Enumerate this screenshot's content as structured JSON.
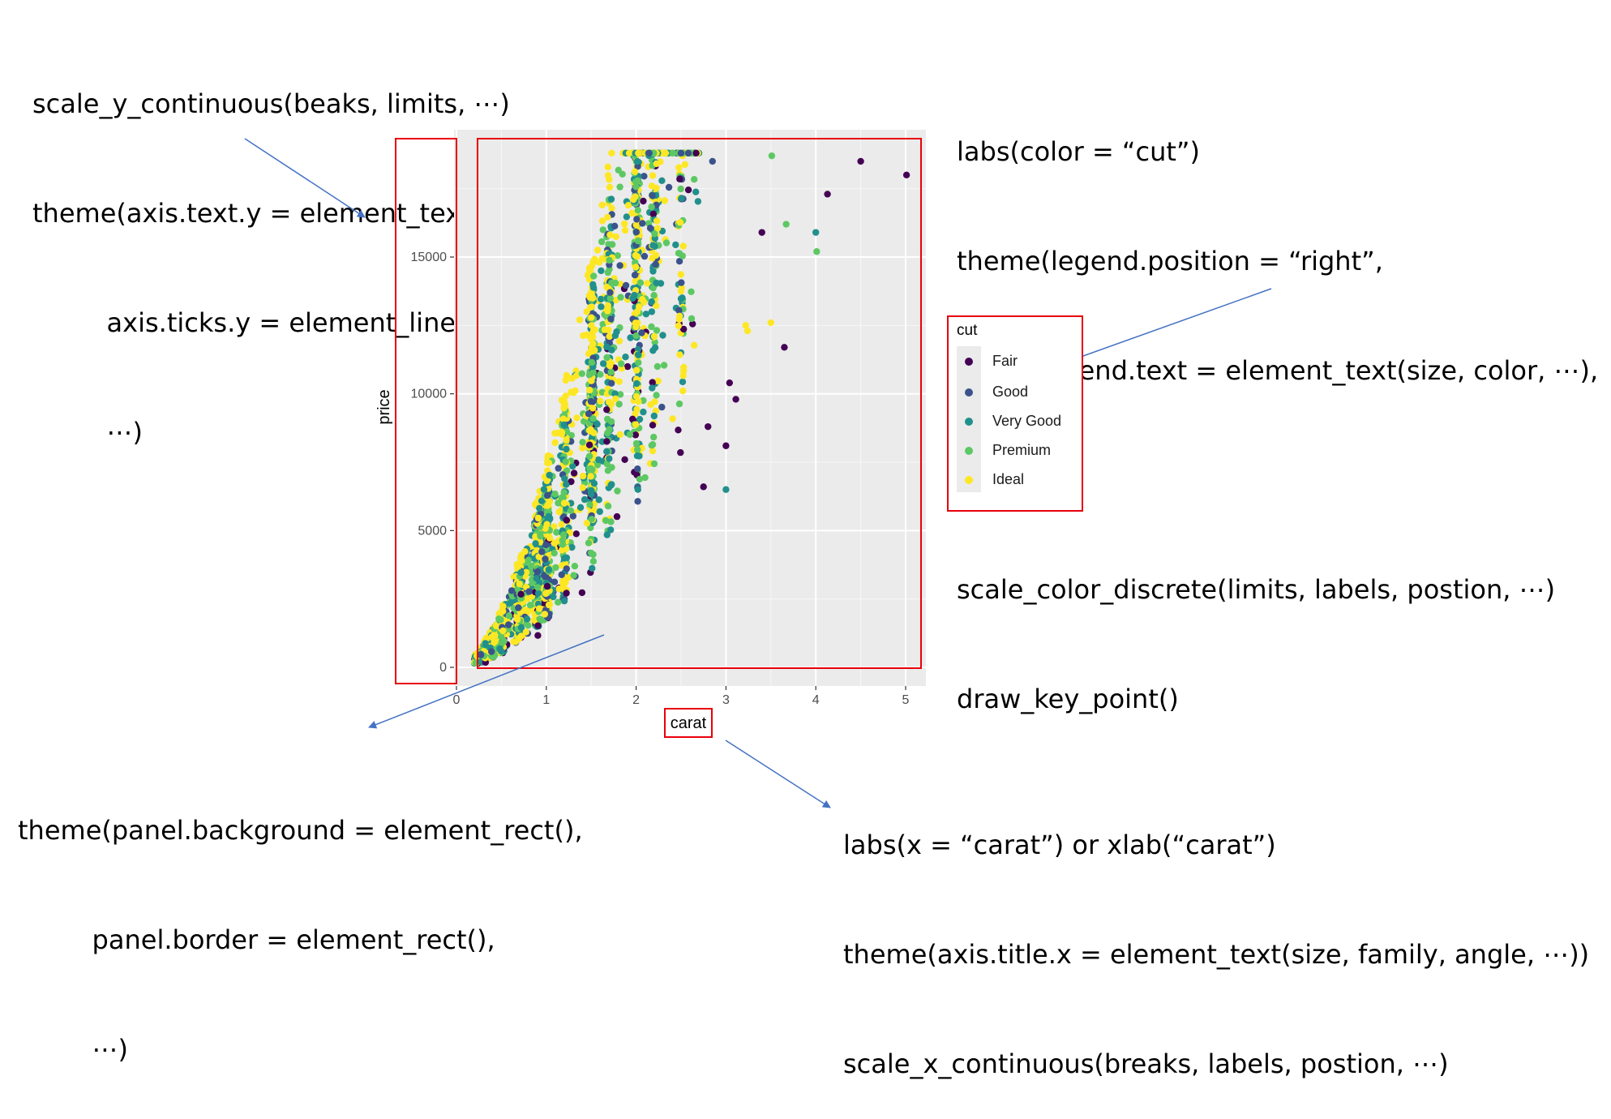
{
  "annotations": {
    "y_scale": [
      "scale_y_continuous(beaks, limits, ⋯)",
      "theme(axis.text.y = element_text(),",
      "         axis.ticks.y = element_line(),",
      "         ⋯)"
    ],
    "legend": [
      "labs(color = “cut”)",
      "theme(legend.position = “right”,",
      "          legend.text = element_text(size, color, ⋯),",
      "          ⋯)",
      "scale_color_discrete(limits, labels, postion, ⋯)",
      "draw_key_point()"
    ],
    "panel": [
      "theme(panel.background = element_rect(),",
      "         panel.border = element_rect(),",
      "         ⋯)"
    ],
    "x_axis": [
      "labs(x = “carat”) or xlab(“carat”)",
      "theme(axis.title.x = element_text(size, family, angle, ⋯))",
      "scale_x_continuous(breaks, labels, postion, ⋯)"
    ]
  },
  "chart_data": {
    "type": "scatter",
    "title": "",
    "xlabel": "carat",
    "ylabel": "price",
    "xlim": [
      0,
      5.15
    ],
    "ylim": [
      -400,
      19500
    ],
    "x_ticks": [
      0,
      1,
      2,
      3,
      4,
      5
    ],
    "y_ticks": [
      0,
      5000,
      10000,
      15000
    ],
    "y_tick_labels": [
      "0",
      "5000",
      "10000",
      "15000"
    ],
    "x_tick_labels": [
      "0",
      "1",
      "2",
      "3",
      "4",
      "5"
    ],
    "grid": true,
    "legend_position": "right",
    "legend_title": "cut",
    "series": [
      {
        "name": "Fair",
        "color": "#440154"
      },
      {
        "name": "Good",
        "color": "#3b528b"
      },
      {
        "name": "Very Good",
        "color": "#21908c"
      },
      {
        "name": "Premium",
        "color": "#5dc863"
      },
      {
        "name": "Ideal",
        "color": "#fde725"
      }
    ],
    "outlier_points": [
      {
        "x": 5.01,
        "y": 18000,
        "series": "Fair"
      },
      {
        "x": 4.5,
        "y": 18500,
        "series": "Fair"
      },
      {
        "x": 4.13,
        "y": 17300,
        "series": "Fair"
      },
      {
        "x": 4.01,
        "y": 15200,
        "series": "Premium"
      },
      {
        "x": 4.0,
        "y": 15900,
        "series": "Very Good"
      },
      {
        "x": 3.67,
        "y": 16200,
        "series": "Premium"
      },
      {
        "x": 3.4,
        "y": 15900,
        "series": "Fair"
      },
      {
        "x": 3.65,
        "y": 11700,
        "series": "Fair"
      },
      {
        "x": 3.5,
        "y": 12600,
        "series": "Ideal"
      },
      {
        "x": 3.22,
        "y": 12500,
        "series": "Ideal"
      },
      {
        "x": 3.24,
        "y": 12300,
        "series": "Ideal"
      },
      {
        "x": 3.51,
        "y": 18700,
        "series": "Premium"
      },
      {
        "x": 3.11,
        "y": 9800,
        "series": "Fair"
      },
      {
        "x": 3.04,
        "y": 10400,
        "series": "Fair"
      },
      {
        "x": 3.0,
        "y": 6500,
        "series": "Very Good"
      },
      {
        "x": 3.0,
        "y": 8100,
        "series": "Fair"
      },
      {
        "x": 2.75,
        "y": 6600,
        "series": "Fair"
      },
      {
        "x": 2.8,
        "y": 8800,
        "series": "Fair"
      },
      {
        "x": 2.85,
        "y": 18500,
        "series": "Good"
      }
    ]
  },
  "colors": {
    "panel_bg": "#ebebeb",
    "grid": "#ffffff",
    "highlight_box": "#e8000b",
    "arrow": "#4472c4"
  }
}
